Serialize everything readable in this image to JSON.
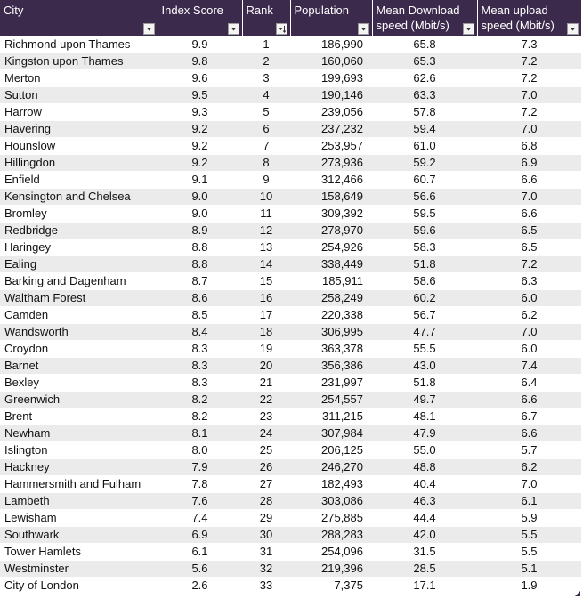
{
  "table": {
    "headers": [
      {
        "label": "City",
        "filter": "dropdown"
      },
      {
        "label": "Index Score",
        "filter": "dropdown"
      },
      {
        "label": "Rank",
        "filter": "sorted-ascending"
      },
      {
        "label": "Population",
        "filter": "dropdown"
      },
      {
        "label": "Mean Download speed (Mbit/s)",
        "filter": "dropdown"
      },
      {
        "label": "Mean upload speed (Mbit/s)",
        "filter": "dropdown"
      }
    ],
    "rows": [
      [
        "Richmond upon Thames",
        "9.9",
        "1",
        "186,990",
        "65.8",
        "7.3"
      ],
      [
        "Kingston upon Thames",
        "9.8",
        "2",
        "160,060",
        "65.3",
        "7.2"
      ],
      [
        "Merton",
        "9.6",
        "3",
        "199,693",
        "62.6",
        "7.2"
      ],
      [
        "Sutton",
        "9.5",
        "4",
        "190,146",
        "63.3",
        "7.0"
      ],
      [
        "Harrow",
        "9.3",
        "5",
        "239,056",
        "57.8",
        "7.2"
      ],
      [
        "Havering",
        "9.2",
        "6",
        "237,232",
        "59.4",
        "7.0"
      ],
      [
        "Hounslow",
        "9.2",
        "7",
        "253,957",
        "61.0",
        "6.8"
      ],
      [
        "Hillingdon",
        "9.2",
        "8",
        "273,936",
        "59.2",
        "6.9"
      ],
      [
        "Enfield",
        "9.1",
        "9",
        "312,466",
        "60.7",
        "6.6"
      ],
      [
        "Kensington and Chelsea",
        "9.0",
        "10",
        "158,649",
        "56.6",
        "7.0"
      ],
      [
        "Bromley",
        "9.0",
        "11",
        "309,392",
        "59.5",
        "6.6"
      ],
      [
        "Redbridge",
        "8.9",
        "12",
        "278,970",
        "59.6",
        "6.5"
      ],
      [
        "Haringey",
        "8.8",
        "13",
        "254,926",
        "58.3",
        "6.5"
      ],
      [
        "Ealing",
        "8.8",
        "14",
        "338,449",
        "51.8",
        "7.2"
      ],
      [
        "Barking and Dagenham",
        "8.7",
        "15",
        "185,911",
        "58.6",
        "6.3"
      ],
      [
        "Waltham Forest",
        "8.6",
        "16",
        "258,249",
        "60.2",
        "6.0"
      ],
      [
        "Camden",
        "8.5",
        "17",
        "220,338",
        "56.7",
        "6.2"
      ],
      [
        "Wandsworth",
        "8.4",
        "18",
        "306,995",
        "47.7",
        "7.0"
      ],
      [
        "Croydon",
        "8.3",
        "19",
        "363,378",
        "55.5",
        "6.0"
      ],
      [
        "Barnet",
        "8.3",
        "20",
        "356,386",
        "43.0",
        "7.4"
      ],
      [
        "Bexley",
        "8.3",
        "21",
        "231,997",
        "51.8",
        "6.4"
      ],
      [
        "Greenwich",
        "8.2",
        "22",
        "254,557",
        "49.7",
        "6.6"
      ],
      [
        "Brent",
        "8.2",
        "23",
        "311,215",
        "48.1",
        "6.7"
      ],
      [
        "Newham",
        "8.1",
        "24",
        "307,984",
        "47.9",
        "6.6"
      ],
      [
        "Islington",
        "8.0",
        "25",
        "206,125",
        "55.0",
        "5.7"
      ],
      [
        "Hackney",
        "7.9",
        "26",
        "246,270",
        "48.8",
        "6.2"
      ],
      [
        "Hammersmith and Fulham",
        "7.8",
        "27",
        "182,493",
        "40.4",
        "7.0"
      ],
      [
        "Lambeth",
        "7.6",
        "28",
        "303,086",
        "46.3",
        "6.1"
      ],
      [
        "Lewisham",
        "7.4",
        "29",
        "275,885",
        "44.4",
        "5.9"
      ],
      [
        "Southwark",
        "6.9",
        "30",
        "288,283",
        "42.0",
        "5.5"
      ],
      [
        "Tower Hamlets",
        "6.1",
        "31",
        "254,096",
        "31.5",
        "5.5"
      ],
      [
        "Westminster",
        "5.6",
        "32",
        "219,396",
        "28.5",
        "5.1"
      ],
      [
        "City of London",
        "2.6",
        "33",
        "7,375",
        "17.1",
        "1.9"
      ]
    ]
  },
  "colors": {
    "header_bg": "#3c2a4d",
    "header_text": "#ffffff",
    "band_row": "#ebebeb"
  }
}
